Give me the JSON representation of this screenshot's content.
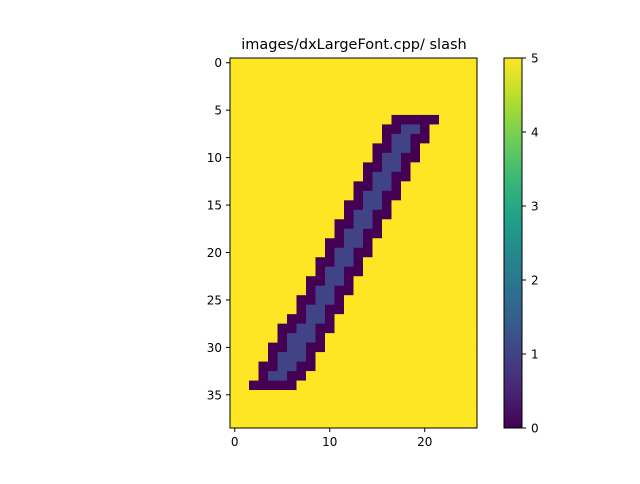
{
  "chart_data": {
    "type": "heatmap",
    "title": "images/dxLargeFont.cpp/ slash",
    "xlabel": "",
    "ylabel": "",
    "x_ticks": [
      0,
      10,
      20
    ],
    "y_ticks": [
      0,
      5,
      10,
      15,
      20,
      25,
      30,
      35
    ],
    "xlim": [
      -0.5,
      25.5
    ],
    "ylim": [
      38.5,
      -0.5
    ],
    "grid": false,
    "colormap": "viridis",
    "colorbar": {
      "range": [
        0,
        5
      ],
      "ticks": [
        "0",
        "1",
        "2",
        "3",
        "4",
        "5"
      ]
    },
    "background_value": 5,
    "outline_value": 0,
    "stroke_value": 1,
    "shape": [
      39,
      26
    ],
    "rows": [
      {
        "y": 6,
        "outline": [
          17,
          21
        ],
        "stroke": []
      },
      {
        "y": 7,
        "outline": [
          16,
          20
        ],
        "stroke": [
          18,
          19
        ]
      },
      {
        "y": 8,
        "outline": [
          16,
          20
        ],
        "stroke": [
          17,
          18
        ]
      },
      {
        "y": 9,
        "outline": [
          15,
          19
        ],
        "stroke": [
          17,
          18
        ]
      },
      {
        "y": 10,
        "outline": [
          15,
          19
        ],
        "stroke": [
          16,
          17
        ]
      },
      {
        "y": 11,
        "outline": [
          14,
          18
        ],
        "stroke": [
          16,
          17
        ]
      },
      {
        "y": 12,
        "outline": [
          14,
          18
        ],
        "stroke": [
          15,
          16
        ]
      },
      {
        "y": 13,
        "outline": [
          13,
          17
        ],
        "stroke": [
          15,
          16
        ]
      },
      {
        "y": 14,
        "outline": [
          13,
          17
        ],
        "stroke": [
          14,
          15
        ]
      },
      {
        "y": 15,
        "outline": [
          12,
          16
        ],
        "stroke": [
          14,
          15
        ]
      },
      {
        "y": 16,
        "outline": [
          12,
          16
        ],
        "stroke": [
          13,
          14
        ]
      },
      {
        "y": 17,
        "outline": [
          11,
          15
        ],
        "stroke": [
          13,
          14
        ]
      },
      {
        "y": 18,
        "outline": [
          11,
          15
        ],
        "stroke": [
          12,
          13
        ]
      },
      {
        "y": 19,
        "outline": [
          10,
          14
        ],
        "stroke": [
          12,
          13
        ]
      },
      {
        "y": 20,
        "outline": [
          10,
          14
        ],
        "stroke": [
          11,
          12
        ]
      },
      {
        "y": 21,
        "outline": [
          9,
          13
        ],
        "stroke": [
          11,
          12
        ]
      },
      {
        "y": 22,
        "outline": [
          9,
          13
        ],
        "stroke": [
          10,
          11
        ]
      },
      {
        "y": 23,
        "outline": [
          8,
          12
        ],
        "stroke": [
          10,
          11
        ]
      },
      {
        "y": 24,
        "outline": [
          8,
          12
        ],
        "stroke": [
          9,
          10
        ]
      },
      {
        "y": 25,
        "outline": [
          7,
          11
        ],
        "stroke": [
          9,
          10
        ]
      },
      {
        "y": 26,
        "outline": [
          7,
          11
        ],
        "stroke": [
          8,
          9
        ]
      },
      {
        "y": 27,
        "outline": [
          6,
          10
        ],
        "stroke": [
          8,
          9
        ]
      },
      {
        "y": 28,
        "outline": [
          5,
          10
        ],
        "stroke": [
          7,
          8
        ]
      },
      {
        "y": 29,
        "outline": [
          5,
          9
        ],
        "stroke": [
          6,
          8
        ]
      },
      {
        "y": 30,
        "outline": [
          4,
          9
        ],
        "stroke": [
          6,
          7
        ]
      },
      {
        "y": 31,
        "outline": [
          4,
          8
        ],
        "stroke": [
          5,
          7
        ]
      },
      {
        "y": 32,
        "outline": [
          3,
          8
        ],
        "stroke": [
          5,
          6
        ]
      },
      {
        "y": 33,
        "outline": [
          3,
          7
        ],
        "stroke": [
          4,
          5
        ]
      },
      {
        "y": 34,
        "outline": [
          2,
          6
        ],
        "stroke": []
      }
    ]
  }
}
